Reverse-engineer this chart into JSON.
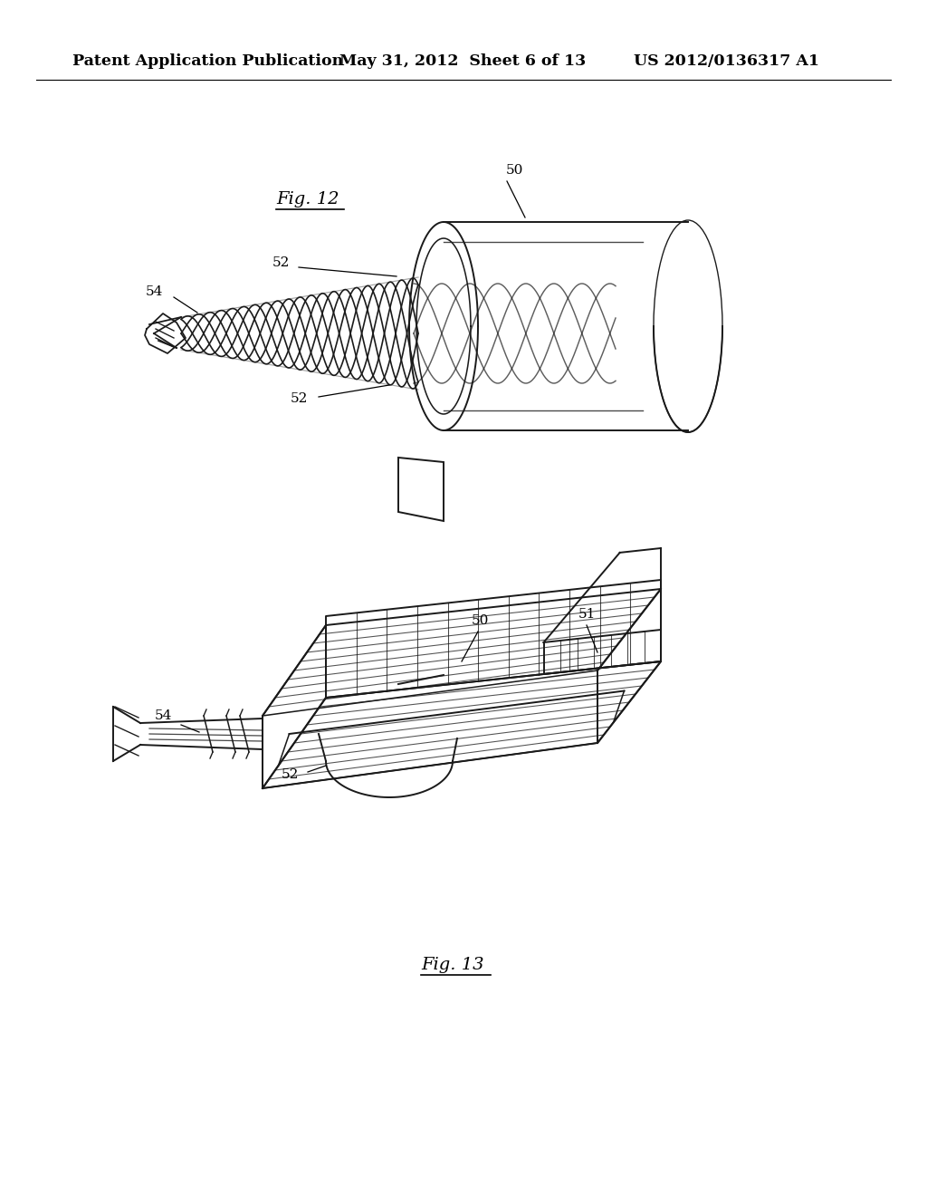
{
  "background_color": "#ffffff",
  "line_color": "#1a1a1a",
  "line_width": 1.4,
  "header_text": "Patent Application Publication",
  "header_date": "May 31, 2012  Sheet 6 of 13",
  "header_patent": "US 2012/0136317 A1",
  "fig12_label": "Fig. 12",
  "fig13_label": "Fig. 13"
}
